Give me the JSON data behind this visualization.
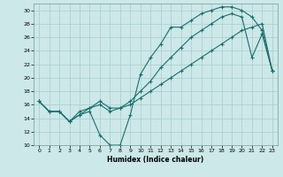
{
  "xlabel": "Humidex (Indice chaleur)",
  "bg_color": "#cce8e8",
  "line_color": "#1a6e6e",
  "grid_color": "#aacccc",
  "xlim": [
    -0.5,
    23.5
  ],
  "ylim": [
    10,
    31
  ],
  "xticks": [
    0,
    1,
    2,
    3,
    4,
    5,
    6,
    7,
    8,
    9,
    10,
    11,
    12,
    13,
    14,
    15,
    16,
    17,
    18,
    19,
    20,
    21,
    22,
    23
  ],
  "yticks": [
    10,
    12,
    14,
    16,
    18,
    20,
    22,
    24,
    26,
    28,
    30
  ],
  "line1_x": [
    0,
    1,
    2,
    3,
    4,
    5,
    6,
    7,
    8,
    9,
    10,
    11,
    12,
    13,
    14,
    15,
    16,
    17,
    18,
    19,
    20,
    21,
    22,
    23
  ],
  "line1_y": [
    16.5,
    15,
    15,
    13.5,
    14.5,
    15,
    11.5,
    10,
    10,
    14.5,
    20.5,
    23,
    25,
    27.5,
    27.5,
    28.5,
    29.5,
    30,
    30.5,
    30.5,
    30,
    29,
    27,
    21
  ],
  "line2_x": [
    0,
    1,
    2,
    3,
    4,
    5,
    6,
    7,
    8,
    9,
    10,
    11,
    12,
    13,
    14,
    15,
    16,
    17,
    18,
    19,
    20,
    21,
    22,
    23
  ],
  "line2_y": [
    16.5,
    15,
    15,
    13.5,
    14.5,
    15.5,
    16.5,
    15.5,
    15.5,
    16.5,
    18,
    19.5,
    21.5,
    23,
    24.5,
    26,
    27,
    28,
    29,
    29.5,
    29,
    23,
    26.5,
    21
  ],
  "line3_x": [
    0,
    1,
    2,
    3,
    4,
    5,
    6,
    7,
    8,
    9,
    10,
    11,
    12,
    13,
    14,
    15,
    16,
    17,
    18,
    19,
    20,
    21,
    22,
    23
  ],
  "line3_y": [
    16.5,
    15,
    15,
    13.5,
    15,
    15.5,
    16,
    15,
    15.5,
    16,
    17,
    18,
    19,
    20,
    21,
    22,
    23,
    24,
    25,
    26,
    27,
    27.5,
    28,
    21
  ]
}
